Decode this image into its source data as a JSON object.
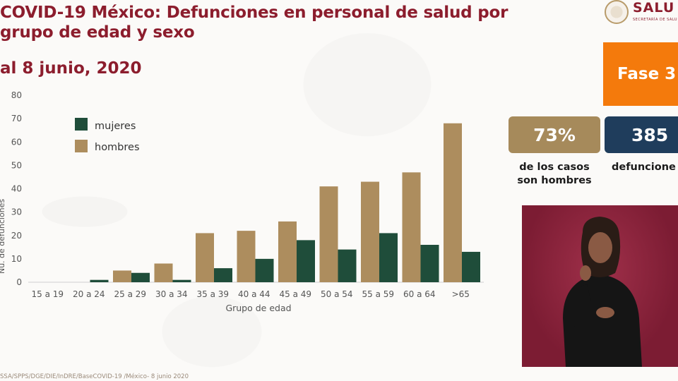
{
  "header": {
    "title_line1": "COVID-19 México: Defunciones en personal de salud por",
    "title_line2": "grupo de edad y sexo",
    "date": "al 8 junio, 2020"
  },
  "logo": {
    "word": "SALU",
    "sub": "SECRETARÍA DE SALU"
  },
  "phase": {
    "label": "Fase 3"
  },
  "stats": {
    "percent_value": "73%",
    "percent_label_1": "de los casos",
    "percent_label_2": "son hombres",
    "deaths_value": "385",
    "deaths_label": "defuncione"
  },
  "footnote": "SSA/SPPS/DGE/DIE/InDRE/BaseCOVID-19 /México- 8 junio 2020",
  "colors": {
    "accent": "#8c1d2d",
    "mujeres": "#1f4d3a",
    "hombres": "#ad8d5e",
    "fase": "#f47a0c",
    "stat_pct": "#a68a5b",
    "stat_def": "#1f3d5c"
  },
  "chart_data": {
    "type": "bar",
    "categories": [
      "15 a 19",
      "20 a 24",
      "25 a 29",
      "30 a 34",
      "35 a 39",
      "40 a 44",
      "45 a 49",
      "50 a 54",
      "55 a 59",
      "60 a 64",
      ">65"
    ],
    "series": [
      {
        "name": "hombres",
        "values": [
          0,
          0,
          5,
          8,
          21,
          22,
          26,
          41,
          43,
          47,
          68
        ]
      },
      {
        "name": "mujeres",
        "values": [
          0,
          1,
          4,
          1,
          6,
          10,
          18,
          14,
          21,
          16,
          13
        ]
      }
    ],
    "xlabel": "Grupo de edad",
    "ylabel": "Nú. de defunciones",
    "ylim": [
      0,
      80
    ],
    "yticks": [
      0,
      10,
      20,
      30,
      40,
      50,
      60,
      70,
      80
    ],
    "legend": [
      "mujeres",
      "hombres"
    ],
    "legend_position": "top-left",
    "grid": false
  }
}
